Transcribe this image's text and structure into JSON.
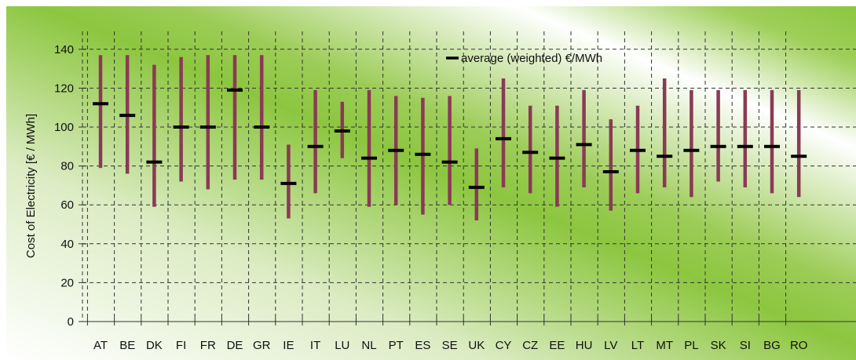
{
  "chart_data": {
    "type": "range",
    "title": "",
    "xlabel": "",
    "ylabel": "Cost of Electricity [€ / MWh]",
    "ylim": [
      0,
      150
    ],
    "yticks": [
      0,
      20,
      40,
      60,
      80,
      100,
      120,
      140
    ],
    "grid": true,
    "legend_position": "top-center",
    "categories": [
      "AT",
      "BE",
      "DK",
      "FI",
      "FR",
      "DE",
      "GR",
      "IE",
      "IT",
      "LU",
      "NL",
      "PT",
      "ES",
      "SE",
      "UK",
      "CY",
      "CZ",
      "EE",
      "HU",
      "LV",
      "LT",
      "MT",
      "PL",
      "SK",
      "SI",
      "BG",
      "RO"
    ],
    "min": [
      79,
      76,
      59,
      72,
      68,
      73,
      73,
      53,
      66,
      84,
      59,
      60,
      55,
      60,
      52,
      69,
      66,
      59,
      69,
      57,
      66,
      69,
      64,
      72,
      69,
      66,
      64
    ],
    "max": [
      137,
      137,
      132,
      136,
      137,
      137,
      137,
      91,
      119,
      113,
      119,
      116,
      115,
      116,
      89,
      125,
      111,
      111,
      119,
      104,
      111,
      125,
      119,
      119,
      119,
      119,
      119
    ],
    "average": [
      112,
      106,
      82,
      100,
      100,
      119,
      100,
      71,
      90,
      98,
      84,
      88,
      86,
      82,
      69,
      94,
      87,
      84,
      91,
      77,
      88,
      85,
      88,
      90,
      90,
      90,
      85
    ],
    "legend": {
      "average_label": "average (weighted) €/MWh"
    },
    "colors": {
      "range_bar": "#8a3a55",
      "average_marker": "#000000",
      "grid": "#333333",
      "background_green": "#8cc63f"
    }
  }
}
